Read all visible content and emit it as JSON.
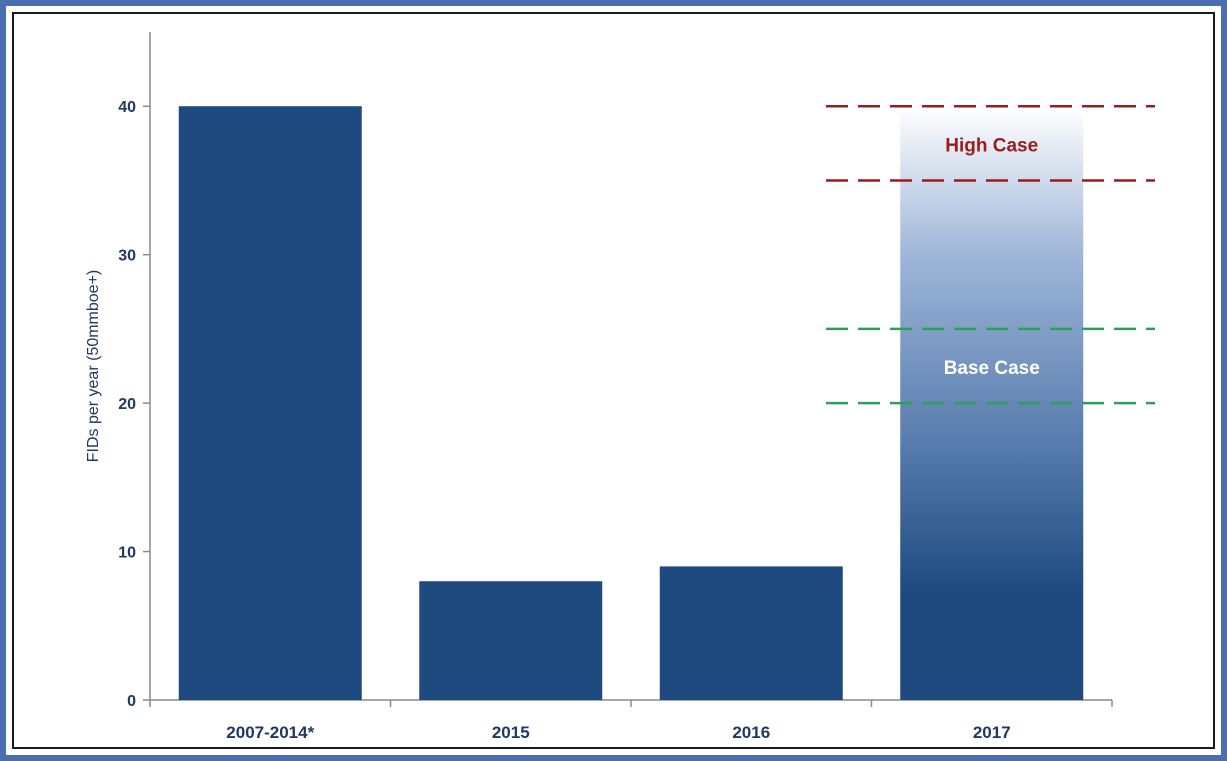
{
  "chart_data": {
    "type": "bar",
    "title": "",
    "xlabel": "",
    "ylabel": "FIDs per year (50mmboe+)",
    "categories": [
      "2007-2014*",
      "2015",
      "2016",
      "2017"
    ],
    "values": [
      40,
      8,
      9,
      40
    ],
    "ylim": [
      0,
      45
    ],
    "yticks": [
      "0",
      "10",
      "20",
      "30",
      "40"
    ],
    "grid": false,
    "legend": "none",
    "bar_color": "#1f4a7f",
    "projection_bar_color_top": "#ffffff",
    "annotations": {
      "high_case": {
        "label": "High Case",
        "low": 35,
        "high": 40,
        "color": "#9b1c1c"
      },
      "base_case": {
        "label": "Base Case",
        "low": 20,
        "high": 25,
        "color": "#2e9e5b"
      }
    }
  }
}
